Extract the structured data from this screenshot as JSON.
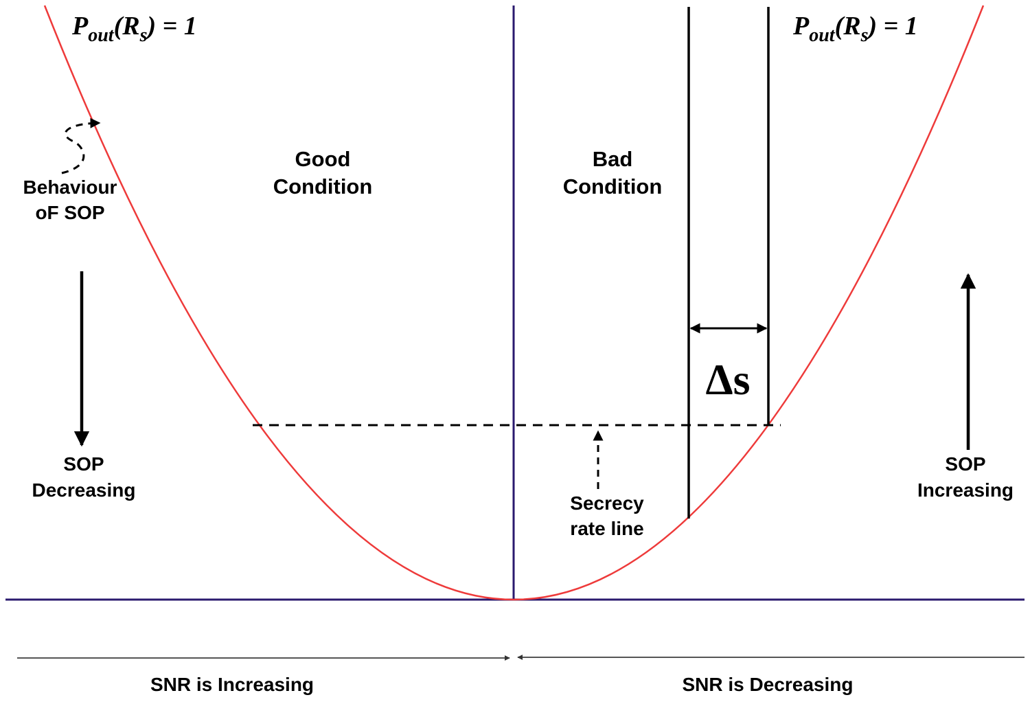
{
  "title_left": {
    "p": "P",
    "sub": "out",
    "paren_open": "(",
    "r": "R",
    "r_sub": "s",
    "rest": ") = 1"
  },
  "title_right": {
    "p": "P",
    "sub": "out",
    "paren_open": "(",
    "r": "R",
    "r_sub": "s",
    "rest": ") = 1"
  },
  "regions": {
    "good_line1": "Good",
    "good_line2": "Condition",
    "bad_line1": "Bad",
    "bad_line2": "Condition"
  },
  "left_annotations": {
    "behaviour_line1": "Behaviour",
    "behaviour_line2": "oF SOP",
    "sop_line1": "SOP",
    "sop_line2": "Decreasing"
  },
  "right_annotations": {
    "sop_line1": "SOP",
    "sop_line2": "Increasing"
  },
  "secrecy": {
    "line1": "Secrecy",
    "line2": "rate line"
  },
  "delta": {
    "symbol": "Δ",
    "var": "s"
  },
  "bottom": {
    "left": "SNR is Increasing",
    "right": "SNR is Decreasing"
  },
  "colors": {
    "curve": "#ee3a3a",
    "axis": "#2a1a6e",
    "ink": "#000000",
    "bottom_line": "#555555"
  }
}
